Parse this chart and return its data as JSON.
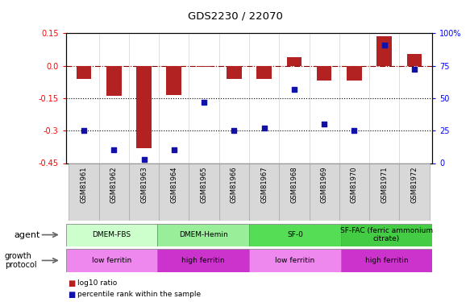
{
  "title": "GDS2230 / 22070",
  "samples": [
    "GSM81961",
    "GSM81962",
    "GSM81963",
    "GSM81964",
    "GSM81965",
    "GSM81966",
    "GSM81967",
    "GSM81968",
    "GSM81969",
    "GSM81970",
    "GSM81971",
    "GSM81972"
  ],
  "log10_ratio": [
    -0.06,
    -0.14,
    -0.38,
    -0.135,
    -0.005,
    -0.06,
    -0.06,
    0.04,
    -0.07,
    -0.07,
    0.135,
    0.055
  ],
  "percentile_rank": [
    25,
    10,
    3,
    10,
    47,
    25,
    27,
    57,
    30,
    25,
    91,
    72
  ],
  "ylim_left": [
    -0.45,
    0.15
  ],
  "ylim_right": [
    0,
    100
  ],
  "yticks_left": [
    -0.45,
    -0.3,
    -0.15,
    0.0,
    0.15
  ],
  "yticks_right": [
    0,
    25,
    50,
    75,
    100
  ],
  "hline_red": 0.0,
  "hlines_black": [
    -0.15,
    -0.3
  ],
  "bar_color": "#B22222",
  "scatter_color": "#1111AA",
  "agent_groups": [
    {
      "label": "DMEM-FBS",
      "start": 0,
      "end": 3,
      "color": "#ccffcc"
    },
    {
      "label": "DMEM-Hemin",
      "start": 3,
      "end": 6,
      "color": "#99ee99"
    },
    {
      "label": "SF-0",
      "start": 6,
      "end": 9,
      "color": "#55dd55"
    },
    {
      "label": "SF-FAC (ferric ammonium\ncitrate)",
      "start": 9,
      "end": 12,
      "color": "#44cc44"
    }
  ],
  "growth_groups": [
    {
      "label": "low ferritin",
      "start": 0,
      "end": 3,
      "color": "#ee88ee"
    },
    {
      "label": "high ferritin",
      "start": 3,
      "end": 6,
      "color": "#cc33cc"
    },
    {
      "label": "low ferritin",
      "start": 6,
      "end": 9,
      "color": "#ee88ee"
    },
    {
      "label": "high ferritin",
      "start": 9,
      "end": 12,
      "color": "#cc33cc"
    }
  ],
  "legend_items": [
    {
      "label": "log10 ratio",
      "color": "#B22222"
    },
    {
      "label": "percentile rank within the sample",
      "color": "#1111AA"
    }
  ]
}
